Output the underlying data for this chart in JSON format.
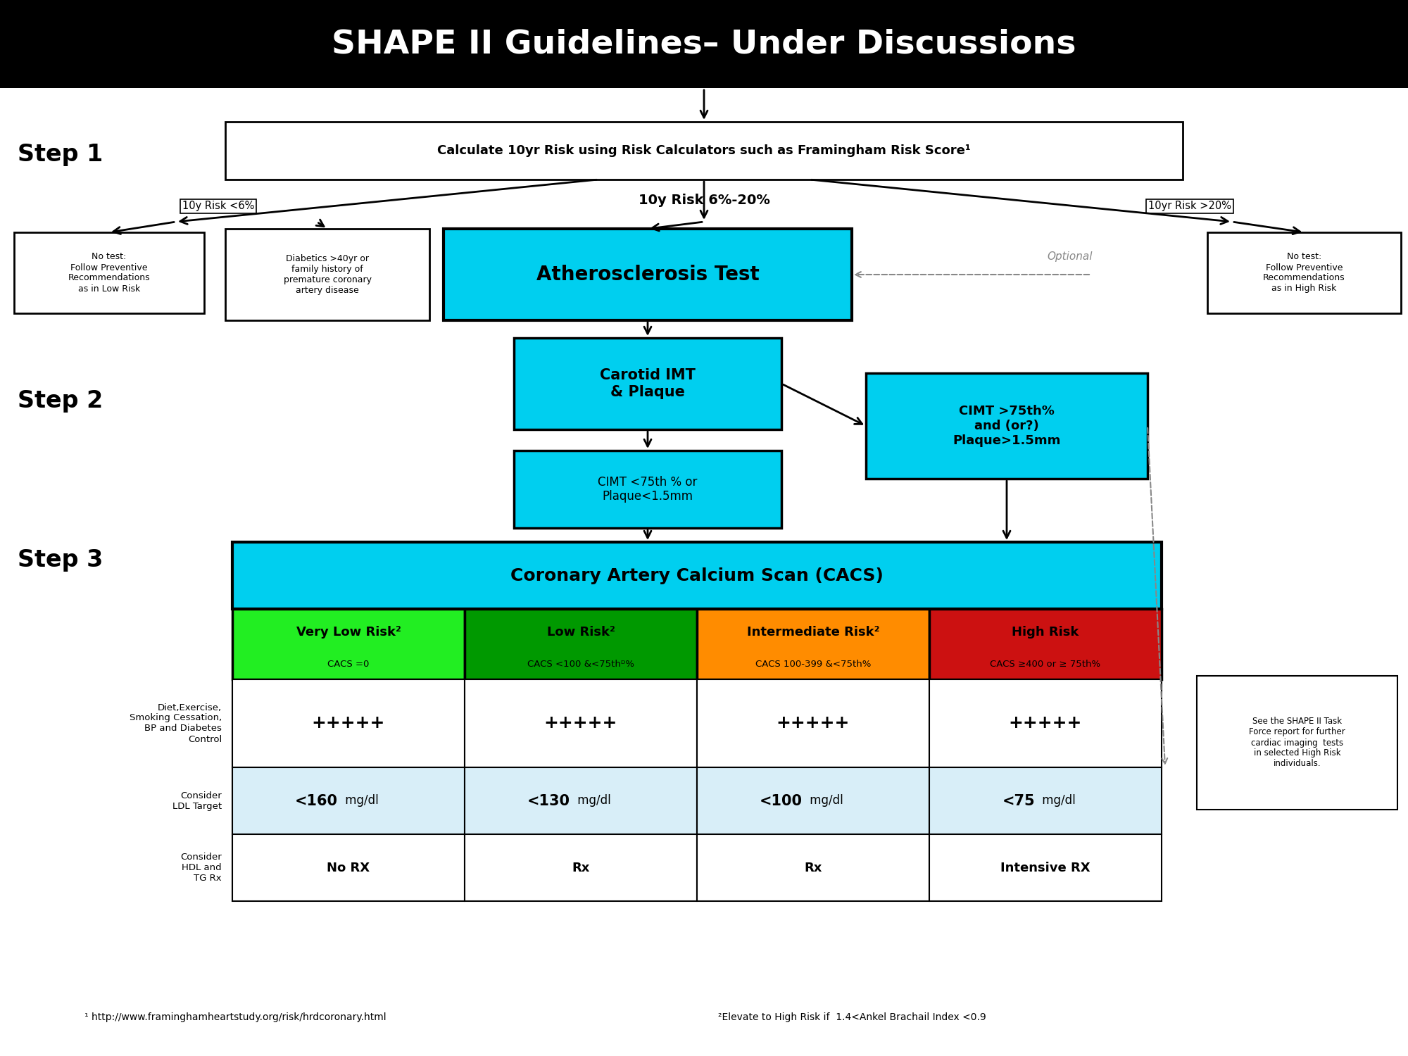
{
  "title": "SHAPE II Guidelines– Under Discussions",
  "title_bg": "#000000",
  "title_color": "#ffffff",
  "title_fontsize": 34,
  "bg_color": "#ffffff",
  "cyan_color": "#00CFEF",
  "green_bright": "#22EE22",
  "green_dark": "#009900",
  "orange_color": "#FF8C00",
  "red_color": "#CC1111",
  "light_blue_cell": "#D8EEF8",
  "step1_label": "Step 1",
  "step2_label": "Step 2",
  "step3_label": "Step 3",
  "step1_box": "Calculate 10yr Risk using Risk Calculators such as Framingham Risk Score¹",
  "low_risk_branch": "10y Risk <6%",
  "mid_risk_branch": "10y Risk 6%-20%",
  "high_risk_branch": "10yr Risk >20%",
  "no_test_low": "No test:\nFollow Preventive\nRecommendations\nas in Low Risk",
  "diabetics_box": "Diabetics >40yr or\nfamily history of\npremature coronary\nartery disease",
  "athero_box": "Atherosclerosis Test",
  "optional_label": "Optional",
  "no_test_high": "No test:\nFollow Preventive\nRecommendations\nas in High Risk",
  "cimt_box": "Carotid IMT\n& Plaque",
  "cimt_low": "CIMT <75th % or\nPlaque<1.5mm",
  "cimt_high": "CIMT >75th%\nand (or?)\nPlaque>1.5mm",
  "cacs_box": "Coronary Artery Calcium Scan (CACS)",
  "risk_headers": [
    "Very Low Risk²",
    "Low Risk²",
    "Intermediate Risk²",
    "High Risk"
  ],
  "risk_subtitles": [
    "CACS =0",
    "CACS <100 &<75thᴰ%",
    "CACS 100-399 &<75th%",
    "CACS ≥400 or ≥ 75th%"
  ],
  "risk_colors": [
    "#22EE22",
    "#009900",
    "#FF8C00",
    "#CC1111"
  ],
  "row1_label": "Diet,Exercise,\nSmoking Cessation,\nBP and Diabetes\nControl",
  "row1_values": [
    "+++++",
    "+++++",
    "+++++",
    "+++++"
  ],
  "row2_label": "Consider\nLDL Target",
  "row2_bold": [
    "<160",
    "<130",
    "<100",
    "<75"
  ],
  "row2_unit": " mg/dl",
  "row3_label": "Consider\nHDL and\nTG Rx",
  "row3_values": [
    "No RX",
    "Rx",
    "Rx",
    "Intensive RX"
  ],
  "footnote1": "¹ http://www.framinghamheartstudy.org/risk/hrdcoronary.html",
  "footnote2": "²Elevate to High Risk if  1.4<Ankel Brachail Index <0.9",
  "shape_note": "See the SHAPE II Task\nForce report for further\ncardiac imaging  tests\nin selected High Risk\nindividuals."
}
